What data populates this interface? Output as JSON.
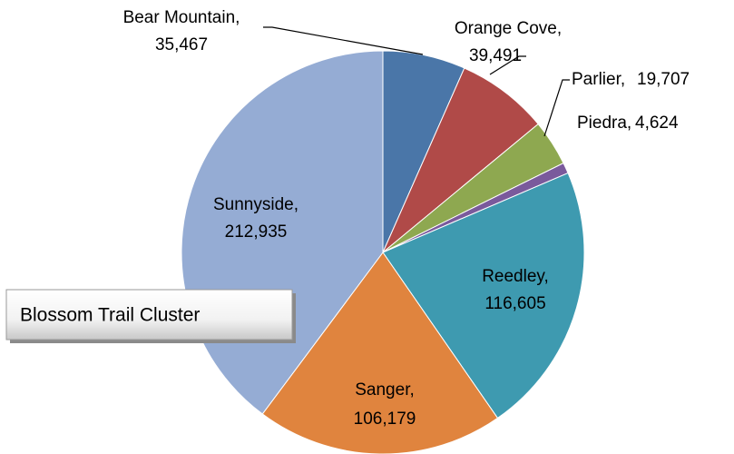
{
  "chart_data": {
    "type": "pie",
    "title": "Blossom Trail Cluster",
    "categories": [
      "Bear Mountain,",
      "Orange Cove,",
      "Parlier,",
      "Piedra,",
      "Reedley,",
      "Sanger,",
      "Sunnyside,"
    ],
    "values": [
      35467,
      39491,
      19707,
      4624,
      116605,
      106179,
      212935
    ],
    "value_labels": [
      "35,467",
      "39,491",
      "19,707",
      "4,624",
      "116,605",
      "106,179",
      "212,935"
    ],
    "colors": [
      "#4a76a8",
      "#b04a48",
      "#8ea850",
      "#7a5a9c",
      "#3e9ab0",
      "#e0843e",
      "#95acd4"
    ]
  }
}
